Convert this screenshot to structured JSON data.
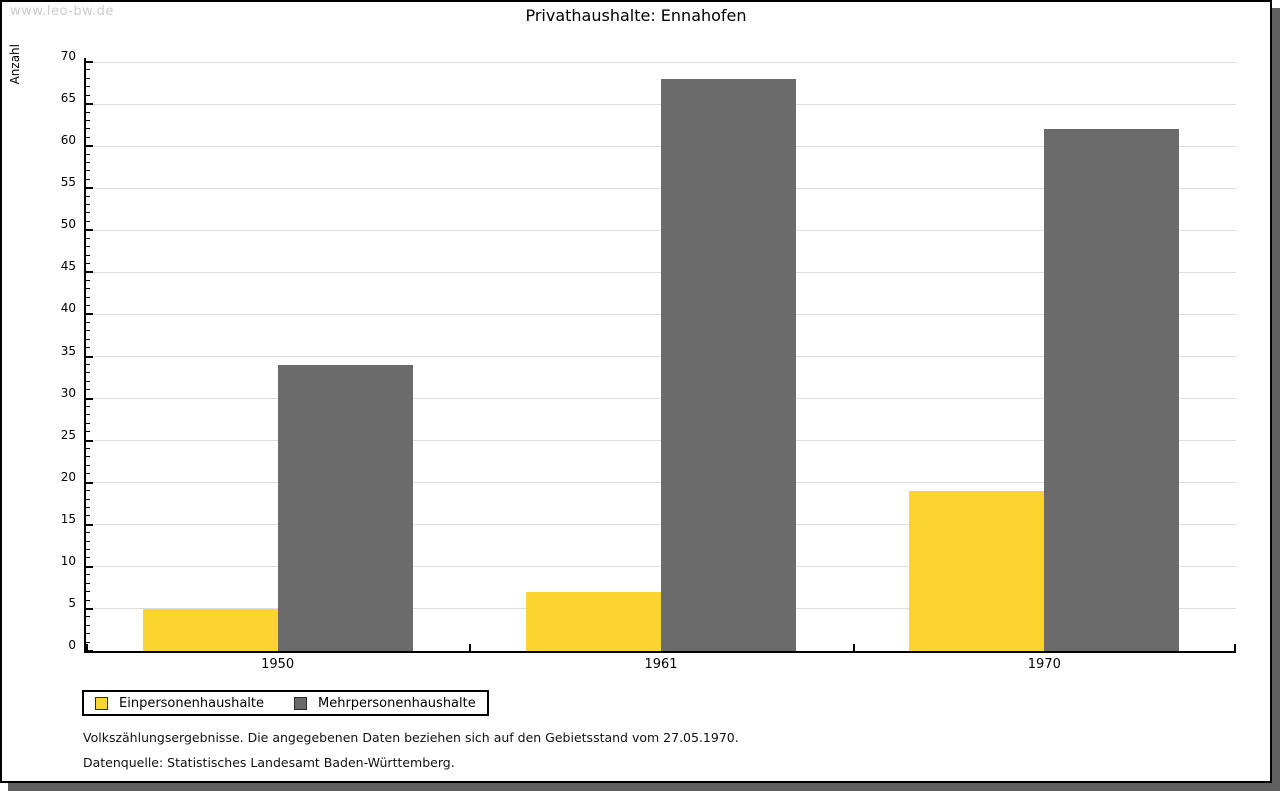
{
  "window": {
    "watermark": "www.leo-bw.de"
  },
  "chart_data": {
    "type": "bar",
    "title": "Privathaushalte: Ennahofen",
    "xlabel": "",
    "ylabel": "Anzahl",
    "categories": [
      "1950",
      "1961",
      "1970"
    ],
    "series": [
      {
        "name": "Einpersonenhaushalte",
        "color": "#fcd42f",
        "values": [
          5,
          7,
          19
        ]
      },
      {
        "name": "Mehrpersonenhaushalte",
        "color": "#6b6b6b",
        "values": [
          34,
          68,
          62
        ]
      }
    ],
    "ylim": [
      0,
      70
    ],
    "y_ticks": [
      0,
      5,
      10,
      15,
      20,
      25,
      30,
      35,
      40,
      45,
      50,
      55,
      60,
      65,
      70
    ],
    "y_minor_step": 1,
    "grid": "horizontal-major",
    "legend_position": "bottom-left",
    "legend_labels": [
      "Einpersonenhaushalte",
      "Mehrpersonenhaushalte"
    ]
  },
  "footnotes": {
    "line1": "Volkszählungsergebnisse. Die angegebenen Daten beziehen sich auf den Gebietsstand vom 27.05.1970.",
    "line2": "Datenquelle: Statistisches Landesamt Baden-Württemberg."
  }
}
